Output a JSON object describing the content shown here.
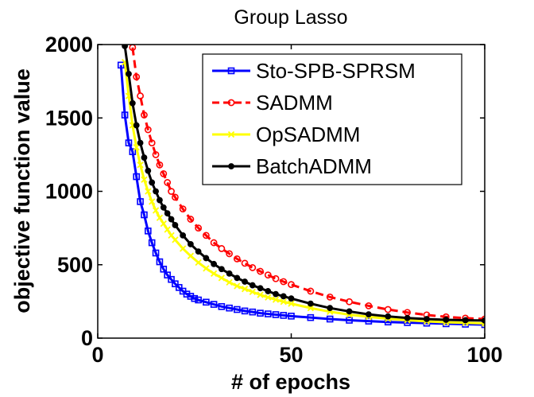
{
  "chart_data": {
    "type": "line",
    "title": "Group Lasso",
    "xlabel": "# of epochs",
    "ylabel": "objective function value",
    "xlim": [
      0,
      100
    ],
    "ylim": [
      0,
      2000
    ],
    "xticks": [
      "0",
      "50",
      "100"
    ],
    "yticks": [
      "0",
      "500",
      "1000",
      "1500",
      "2000"
    ],
    "xtick_values": [
      0,
      50,
      100
    ],
    "ytick_values": [
      0,
      500,
      1000,
      1500,
      2000
    ],
    "grid": false,
    "legend_position": "top-right",
    "series": [
      {
        "name": "Sto-SPB-SPRSM",
        "color": "#0000ff",
        "linestyle": "solid",
        "marker": "square",
        "x": [
          6,
          7,
          8,
          9,
          10,
          11,
          12,
          13,
          14,
          15,
          16,
          17,
          18,
          19,
          20,
          21,
          22,
          23,
          24,
          25,
          26,
          28,
          30,
          32,
          34,
          36,
          38,
          40,
          42,
          44,
          46,
          48,
          50,
          55,
          60,
          65,
          70,
          75,
          80,
          85,
          90,
          95,
          100
        ],
        "y": [
          1860,
          1520,
          1330,
          1270,
          1100,
          930,
          840,
          730,
          650,
          580,
          520,
          470,
          430,
          400,
          370,
          345,
          320,
          300,
          285,
          270,
          260,
          245,
          230,
          215,
          205,
          195,
          185,
          178,
          170,
          165,
          160,
          155,
          150,
          140,
          130,
          122,
          116,
          110,
          106,
          102,
          98,
          95,
          92
        ]
      },
      {
        "name": "SADMM",
        "color": "#ff0000",
        "linestyle": "dashed",
        "marker": "circle",
        "x": [
          9,
          10,
          11,
          12,
          13,
          14,
          15,
          16,
          17,
          18,
          19,
          20,
          22,
          24,
          26,
          28,
          30,
          32,
          34,
          36,
          38,
          40,
          42,
          44,
          46,
          48,
          50,
          55,
          60,
          65,
          70,
          75,
          80,
          85,
          90,
          95,
          100
        ],
        "y": [
          1980,
          1780,
          1650,
          1520,
          1420,
          1330,
          1250,
          1180,
          1120,
          1060,
          1000,
          960,
          880,
          810,
          750,
          700,
          650,
          610,
          575,
          540,
          510,
          480,
          455,
          430,
          405,
          385,
          365,
          320,
          280,
          248,
          220,
          195,
          175,
          158,
          145,
          136,
          130
        ]
      },
      {
        "name": "OpSADMM",
        "color": "#ffff00",
        "linestyle": "solid",
        "marker": "x",
        "x": [
          7,
          8,
          9,
          10,
          11,
          12,
          13,
          14,
          15,
          16,
          17,
          18,
          19,
          20,
          22,
          24,
          26,
          28,
          30,
          32,
          34,
          36,
          38,
          40,
          42,
          44,
          46,
          48,
          50,
          55,
          60,
          65,
          70,
          75,
          80,
          85,
          90,
          95,
          100
        ],
        "y": [
          1880,
          1650,
          1450,
          1300,
          1180,
          1080,
          1000,
          930,
          870,
          820,
          780,
          740,
          700,
          670,
          610,
          560,
          515,
          475,
          440,
          410,
          380,
          355,
          335,
          315,
          295,
          278,
          262,
          248,
          235,
          205,
          180,
          160,
          145,
          132,
          122,
          114,
          108,
          104,
          100
        ]
      },
      {
        "name": "BatchADMM",
        "color": "#000000",
        "linestyle": "solid",
        "marker": "dot",
        "x": [
          7,
          8,
          9,
          10,
          11,
          12,
          13,
          14,
          15,
          16,
          17,
          18,
          19,
          20,
          22,
          24,
          26,
          28,
          30,
          32,
          34,
          36,
          38,
          40,
          42,
          44,
          46,
          48,
          50,
          55,
          60,
          65,
          70,
          75,
          80,
          85,
          90,
          95,
          100
        ],
        "y": [
          1990,
          1800,
          1600,
          1450,
          1330,
          1230,
          1140,
          1060,
          1000,
          940,
          890,
          850,
          810,
          770,
          700,
          640,
          590,
          545,
          505,
          470,
          440,
          410,
          385,
          360,
          340,
          320,
          300,
          285,
          270,
          235,
          205,
          182,
          162,
          148,
          137,
          130,
          125,
          122,
          120
        ]
      }
    ]
  }
}
